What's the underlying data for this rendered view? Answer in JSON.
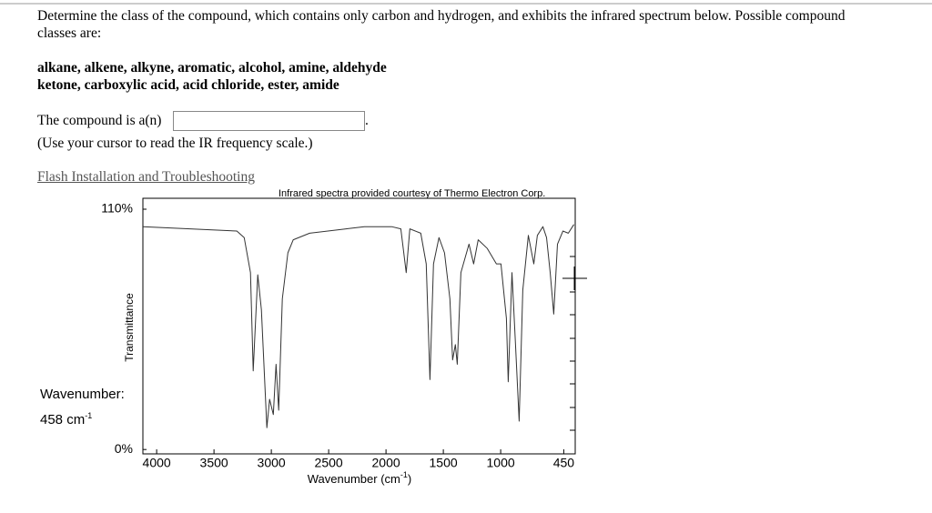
{
  "question": {
    "line1": "Determine the class of the compound, which contains only carbon and hydrogen, and exhibits the infrared spectrum below. Possible compound",
    "line2": "classes are:"
  },
  "classes": {
    "line1": "alkane, alkene, alkyne, aromatic, alcohol, amine, aldehyde",
    "line2": "ketone, carboxylic acid, acid chloride, ester, amide"
  },
  "answer": {
    "prompt": "The compound is a(n)",
    "end": ".",
    "hint": "(Use your cursor to read the IR frequency scale.)"
  },
  "link": "Flash Installation and Troubleshooting",
  "readout": {
    "label": "Wavenumber:",
    "value": "458 cm",
    "sup": "-1"
  },
  "chart_data": {
    "type": "line",
    "title": "Infrared spectra provided courtesy of Thermo Electron Corp.",
    "y_label": "Transmittance",
    "x_label": {
      "text": "Wavenumber (cm",
      "sup": "-1",
      "end": ")"
    },
    "color": "#333333",
    "x": [
      4119,
      3301,
      3237,
      3182,
      3158,
      3118,
      3087,
      3039,
      3015,
      2983,
      2959,
      2936,
      2904,
      2856,
      2809,
      2666,
      2348,
      2189,
      1951,
      1871,
      1824,
      1792,
      1697,
      1649,
      1617,
      1586,
      1538,
      1490,
      1443,
      1419,
      1395,
      1379,
      1347,
      1276,
      1236,
      1196,
      1117,
      1037,
      998,
      950,
      934,
      902,
      871,
      839,
      807,
      759,
      711,
      680,
      632,
      600,
      568,
      537,
      505,
      457,
      410,
      362
    ],
    "values": [
      102,
      100,
      97,
      81,
      36,
      80,
      64,
      10,
      23,
      16,
      39,
      18,
      69,
      90,
      96,
      99,
      101,
      102,
      102,
      101,
      81,
      101,
      99,
      85,
      32,
      85,
      97,
      90,
      69,
      41,
      48,
      39,
      81,
      94,
      85,
      96,
      92,
      85,
      85,
      60,
      31,
      81,
      48,
      13,
      73,
      98,
      85,
      98,
      102,
      97,
      81,
      62,
      94,
      100,
      99,
      103
    ],
    "xlim": [
      4120,
      350
    ],
    "ylim": [
      -2,
      115
    ],
    "xticks": [
      4000,
      3500,
      3000,
      2500,
      2000,
      1500,
      1000,
      450
    ],
    "yticks": [
      {
        "value": 0,
        "label": "0%"
      },
      {
        "value": 110,
        "label": "110%"
      }
    ]
  }
}
